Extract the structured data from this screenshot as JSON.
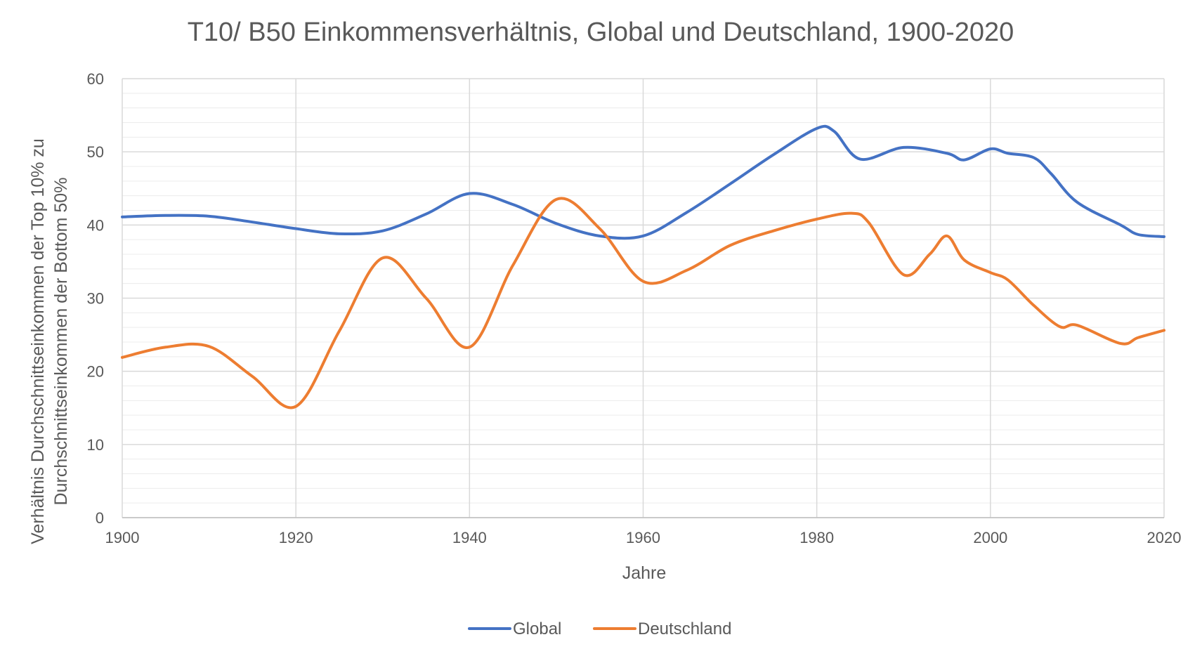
{
  "chart_data": {
    "type": "line",
    "title": "T10/ B50 Einkommensverhältnis, Global und Deutschland, 1900-2020",
    "xlabel": "Jahre",
    "ylabel_line1": "Verhältnis Durchschnittseinkommen der Top 10% zu",
    "ylabel_line2": "Durchschnittseinkommen der Bottom 50%",
    "xlim": [
      1900,
      2020
    ],
    "ylim": [
      0,
      60
    ],
    "x_ticks": [
      1900,
      1920,
      1940,
      1960,
      1980,
      2000,
      2020
    ],
    "y_ticks": [
      0,
      10,
      20,
      30,
      40,
      50,
      60
    ],
    "y_minor_step": 2,
    "grid": true,
    "legend_position": "bottom",
    "series": [
      {
        "name": "Global",
        "color": "#4472C4",
        "x": [
          1900,
          1905,
          1910,
          1915,
          1920,
          1925,
          1930,
          1935,
          1940,
          1945,
          1950,
          1955,
          1960,
          1965,
          1970,
          1975,
          1980,
          1982,
          1985,
          1990,
          1995,
          1997,
          2000,
          2002,
          2005,
          2007,
          2010,
          2015,
          2017,
          2020
        ],
        "values": [
          41.1,
          41.3,
          41.2,
          40.4,
          39.5,
          38.8,
          39.2,
          41.5,
          44.3,
          42.8,
          40.2,
          38.5,
          38.5,
          41.7,
          45.6,
          49.6,
          53.2,
          52.8,
          49.0,
          50.6,
          49.8,
          48.9,
          50.4,
          49.8,
          49.2,
          47.0,
          43.1,
          40.0,
          38.7,
          38.4
        ]
      },
      {
        "name": "Deutschland",
        "color": "#ED7D31",
        "x": [
          1900,
          1905,
          1910,
          1915,
          1920,
          1925,
          1930,
          1935,
          1940,
          1945,
          1950,
          1955,
          1960,
          1965,
          1970,
          1975,
          1980,
          1984,
          1986,
          1990,
          1993,
          1995,
          1997,
          2000,
          2002,
          2005,
          2008,
          2010,
          2015,
          2017,
          2020
        ],
        "values": [
          21.9,
          23.3,
          23.4,
          19.3,
          15.2,
          25.5,
          35.5,
          30.0,
          23.3,
          34.5,
          43.5,
          39.5,
          32.3,
          33.8,
          37.2,
          39.2,
          40.8,
          41.6,
          40.3,
          33.2,
          36.0,
          38.5,
          35.2,
          33.5,
          32.5,
          29.0,
          26.1,
          26.3,
          23.8,
          24.6,
          25.6
        ]
      }
    ]
  }
}
